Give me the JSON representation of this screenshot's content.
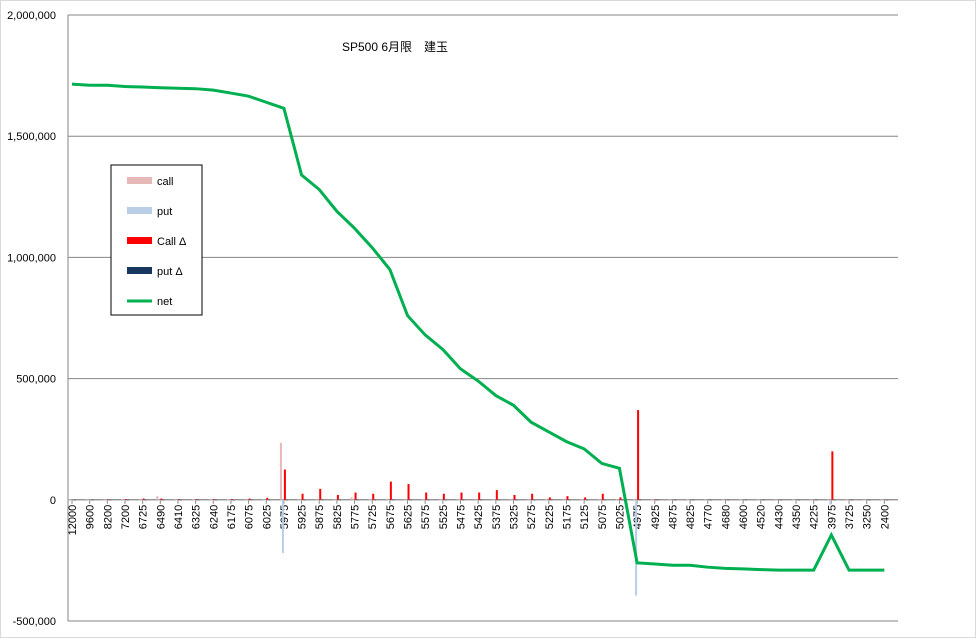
{
  "chart_data": {
    "type": "bar_line",
    "title": "SP500 6月限　建玉",
    "categories": [
      "12000",
      "9600",
      "8200",
      "7200",
      "6725",
      "6490",
      "6410",
      "6325",
      "6240",
      "6175",
      "6075",
      "6025",
      "5975",
      "5925",
      "5875",
      "5825",
      "5775",
      "5725",
      "5675",
      "5625",
      "5575",
      "5525",
      "5475",
      "5425",
      "5375",
      "5325",
      "5275",
      "5225",
      "5175",
      "5125",
      "5075",
      "5025",
      "4975",
      "4925",
      "4875",
      "4825",
      "4770",
      "4680",
      "4600",
      "4520",
      "4430",
      "4350",
      "4225",
      "3975",
      "3725",
      "3250",
      "2400"
    ],
    "series": [
      {
        "name": "call",
        "kind": "bar",
        "color": "#e6b9b8",
        "values": [
          3000,
          3000,
          3000,
          3000,
          3000,
          15000,
          3000,
          3000,
          3000,
          3000,
          3000,
          3000,
          235000,
          3000,
          3000,
          3000,
          10000,
          3000,
          3000,
          3000,
          3000,
          3000,
          3000,
          3000,
          3000,
          3000,
          3000,
          3000,
          3000,
          3000,
          3000,
          3000,
          3000,
          3000,
          3000,
          3000,
          3000,
          3000,
          3000,
          3000,
          3000,
          3000,
          3000,
          3000,
          3000,
          3000,
          3000
        ]
      },
      {
        "name": "put",
        "kind": "bar",
        "color": "#b9cde5",
        "values": [
          -3000,
          -3000,
          -3000,
          -3000,
          -3000,
          -3000,
          -3000,
          -3000,
          -3000,
          -3000,
          -3000,
          -3000,
          -220000,
          -3000,
          -3000,
          -3000,
          -3000,
          -3000,
          -3000,
          -3000,
          -3000,
          -3000,
          -3000,
          -3000,
          -3000,
          -3000,
          -3000,
          -3000,
          -3000,
          -3000,
          -3000,
          -3000,
          -395000,
          -3000,
          -3000,
          -3000,
          -3000,
          -3000,
          -3000,
          -3000,
          -3000,
          -3000,
          -3000,
          -20000,
          -3000,
          -3000,
          -3000
        ]
      },
      {
        "name": "Call Δ",
        "kind": "bar",
        "color": "#ff0000",
        "values": [
          0,
          0,
          2000,
          3000,
          5000,
          5000,
          3000,
          3000,
          3000,
          3000,
          5000,
          8000,
          125000,
          25000,
          45000,
          20000,
          30000,
          25000,
          75000,
          65000,
          30000,
          25000,
          30000,
          30000,
          40000,
          20000,
          25000,
          10000,
          15000,
          10000,
          25000,
          10000,
          370000,
          2000,
          1000,
          1000,
          1000,
          1000,
          1000,
          1000,
          1000,
          1000,
          1000,
          200000,
          1000,
          1000,
          1000
        ]
      },
      {
        "name": "put Δ",
        "kind": "bar",
        "color": "#17375e",
        "values": [
          -2000,
          -2000,
          -2000,
          -2000,
          -2000,
          -2000,
          -2000,
          -2000,
          -2000,
          -2000,
          -2000,
          -2000,
          -2000,
          -2000,
          -2000,
          -2000,
          -2000,
          -2000,
          -2000,
          -2000,
          -2000,
          -2000,
          -2000,
          -2000,
          -2000,
          -2000,
          -2000,
          -2000,
          -2000,
          -2000,
          -2000,
          -2000,
          -2000,
          -2000,
          -2000,
          -2000,
          -2000,
          -2000,
          -2000,
          -2000,
          -2000,
          -2000,
          -2000,
          -2000,
          -2000,
          -2000,
          -2000
        ]
      },
      {
        "name": "net",
        "kind": "line",
        "color": "#00b050",
        "values": [
          1715000,
          1710000,
          1710000,
          1705000,
          1703000,
          1700000,
          1698000,
          1696000,
          1690000,
          1678000,
          1665000,
          1640000,
          1615000,
          1340000,
          1280000,
          1190000,
          1120000,
          1040000,
          950000,
          760000,
          680000,
          620000,
          540000,
          490000,
          430000,
          390000,
          320000,
          280000,
          240000,
          210000,
          150000,
          130000,
          -260000,
          -265000,
          -270000,
          -270000,
          -278000,
          -283000,
          -285000,
          -288000,
          -290000,
          -290000,
          -290000,
          -145000,
          -290000,
          -290000,
          -290000
        ]
      }
    ],
    "ylim": [
      -500000,
      2000000
    ],
    "yticks": [
      {
        "value": -500000,
        "label": "-500,000"
      },
      0,
      {
        "value": 500000,
        "label": "500,000"
      },
      {
        "value": 1000000,
        "label": "1,000,000"
      },
      {
        "value": 1500000,
        "label": "1,500,000"
      },
      {
        "value": 2000000,
        "label": "2,000,000"
      }
    ],
    "grid": true,
    "legend": "left"
  }
}
